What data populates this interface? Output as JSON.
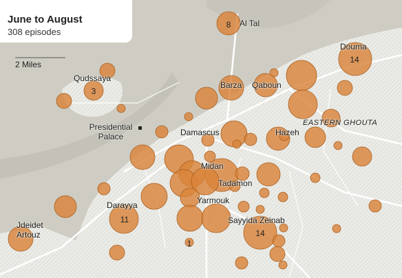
{
  "title": "June to August",
  "subtitle": "308 episodes",
  "scale_label": "2 Miles",
  "colors": {
    "bubble_fill": "#d9843a",
    "bubble_stroke": "#a85f20",
    "mountain_bg": "#cfcdc3",
    "urban_bg": "#e9e9e5",
    "road": "#ffffff"
  },
  "places": {
    "al_tal": "Al Tal",
    "qudssaya": "Qudssaya",
    "douma": "Douma",
    "barza": "Barza",
    "qaboun": "Qaboun",
    "presidential_palace_1": "Presidential",
    "presidential_palace_2": "Palace",
    "damascus": "Damascus",
    "hazeh": "Hazeh",
    "eastern_ghouta": "EASTERN GHOUTA",
    "midan": "Midan",
    "tadamon": "Tadamon",
    "yarmouk": "Yarmouk",
    "darayya": "Darayya",
    "sayyida_zeinab": "Sayyida Zeinab",
    "jdeidet_artouz_1": "Jdeidet",
    "jdeidet_artouz_2": "Artouz"
  },
  "episode_counts": {
    "al_tal": "8",
    "qudssaya": "3",
    "douma": "14",
    "darayya": "11",
    "sayyida_zeinab": "14",
    "yarmouk_south": "1"
  }
}
